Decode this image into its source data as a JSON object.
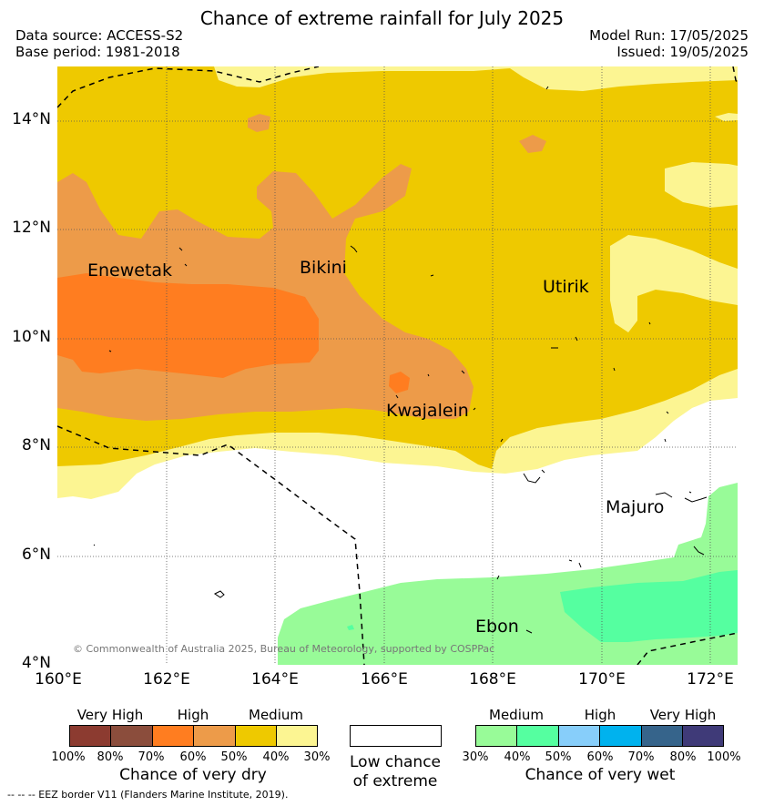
{
  "header": {
    "title": "Chance of extreme rainfall for July 2025",
    "data_source": "Data source: ACCESS-S2",
    "base_period": "Base period: 1981-2018",
    "model_run": "Model Run: 17/05/2025",
    "issued": "Issued: 19/05/2025"
  },
  "map": {
    "lat_labels": [
      "14°N",
      "12°N",
      "10°N",
      "8°N",
      "6°N",
      "4°N"
    ],
    "lon_labels": [
      "160°E",
      "162°E",
      "164°E",
      "166°E",
      "168°E",
      "170°E",
      "172°E"
    ],
    "places": [
      "Enewetak",
      "Bikini",
      "Utirik",
      "Kwajalein",
      "Majuro",
      "Ebon"
    ],
    "copyright": "© Commonwealth of Australia 2025, Bureau of Meteorology, supported by COSPPac"
  },
  "legend": {
    "dry": {
      "headers": [
        "Very High",
        "High",
        "Medium"
      ],
      "colors": [
        "#8c3b30",
        "#8b4d3c",
        "#ff7d20",
        "#ed9b49",
        "#eec900",
        "#fcf592"
      ],
      "ticks": [
        "100%",
        "80%",
        "70%",
        "60%",
        "50%",
        "40%",
        "30%"
      ],
      "title": "Chance of very dry"
    },
    "low": {
      "title_line1": "Low chance",
      "title_line2": "of extreme",
      "color": "#ffffff"
    },
    "wet": {
      "headers": [
        "Medium",
        "High",
        "Very High"
      ],
      "colors": [
        "#98fb98",
        "#55ffa0",
        "#87cefa",
        "#00b2ee",
        "#36648b",
        "#3f3a78"
      ],
      "ticks": [
        "30%",
        "40%",
        "50%",
        "60%",
        "70%",
        "80%",
        "100%"
      ],
      "title": "Chance of very wet"
    },
    "eez_note": "-- -- -- EEZ border V11 (Flanders Marine Institute, 2019)."
  }
}
